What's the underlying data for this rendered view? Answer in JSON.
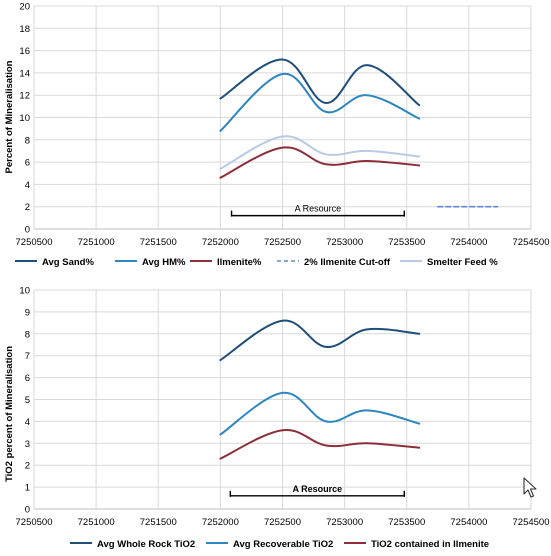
{
  "chart_data": [
    {
      "type": "line",
      "title": "",
      "xlabel": "",
      "ylabel": "Percent of Mineralisation",
      "xlim": [
        7250500,
        7254500
      ],
      "ylim": [
        0,
        20
      ],
      "x_ticks": [
        7250500,
        7251000,
        7251500,
        7252000,
        7252500,
        7253000,
        7253500,
        7254000,
        7254500
      ],
      "x_tick_labels": [
        "7250500",
        "7251000",
        "7251500",
        "7252000",
        "7252500",
        "7253000",
        "7253500",
        "7254000",
        "7254500"
      ],
      "y_ticks": [
        0,
        2,
        4,
        6,
        8,
        10,
        12,
        14,
        16,
        18,
        20
      ],
      "y_tick_labels": [
        "0",
        "2",
        "4",
        "6",
        "8",
        "10",
        "12",
        "14",
        "16",
        "18",
        "20"
      ],
      "grid": true,
      "legend_position": "bottom",
      "series": [
        {
          "name": "Avg Sand%",
          "color": "#1f4e79",
          "dash": false,
          "x": [
            7252000,
            7252500,
            7252850,
            7253180,
            7253600
          ],
          "values": [
            11.7,
            15.2,
            11.3,
            14.7,
            11.1
          ]
        },
        {
          "name": "Avg HM%",
          "color": "#2e86c1",
          "dash": false,
          "x": [
            7252000,
            7252500,
            7252850,
            7253180,
            7253600
          ],
          "values": [
            8.8,
            13.9,
            10.5,
            12.0,
            9.9
          ]
        },
        {
          "name": "Ilmenite%",
          "color": "#8b2e3a",
          "dash": false,
          "x": [
            7252000,
            7252500,
            7252850,
            7253180,
            7253600
          ],
          "values": [
            4.6,
            7.3,
            5.8,
            6.1,
            5.7
          ]
        },
        {
          "name": "2% Ilmenite Cut-off",
          "color": "#5b8ad8",
          "dash": true,
          "x": [
            7253750,
            7254230
          ],
          "values": [
            2.0,
            2.0
          ]
        },
        {
          "name": "Smelter Feed %",
          "color": "#b9cbe4",
          "dash": false,
          "x": [
            7252000,
            7252500,
            7252850,
            7253180,
            7253600
          ],
          "values": [
            5.4,
            8.3,
            6.7,
            7.0,
            6.5
          ]
        }
      ],
      "annotations": [
        {
          "text": "A Resource",
          "x_start": 7252090,
          "x_end": 7253480,
          "y": 1.2
        }
      ]
    },
    {
      "type": "line",
      "title": "",
      "xlabel": "",
      "ylabel": "TiO2 percent of Mineralisation",
      "xlim": [
        7250500,
        7254500
      ],
      "ylim": [
        0,
        10
      ],
      "x_ticks": [
        7250500,
        7251000,
        7251500,
        7252000,
        7252500,
        7253000,
        7253500,
        7254000,
        7254500
      ],
      "x_tick_labels": [
        "7250500",
        "7251000",
        "7251500",
        "7252000",
        "7252500",
        "7253000",
        "7253500",
        "7254000",
        "7254500"
      ],
      "y_ticks": [
        0,
        1,
        2,
        3,
        4,
        5,
        6,
        7,
        8,
        9,
        10
      ],
      "y_tick_labels": [
        "0",
        "1",
        "2",
        "3",
        "4",
        "5",
        "6",
        "7",
        "8",
        "9",
        "10"
      ],
      "grid": true,
      "legend_position": "bottom",
      "series": [
        {
          "name": "Avg Whole Rock TiO2",
          "color": "#1f4e79",
          "dash": false,
          "x": [
            7252000,
            7252500,
            7252850,
            7253180,
            7253600
          ],
          "values": [
            6.8,
            8.6,
            7.4,
            8.2,
            8.0
          ]
        },
        {
          "name": "Avg Recoverable TiO2",
          "color": "#2e86c1",
          "dash": false,
          "x": [
            7252000,
            7252500,
            7252850,
            7253180,
            7253600
          ],
          "values": [
            3.4,
            5.3,
            4.0,
            4.5,
            3.9
          ]
        },
        {
          "name": "TiO2 contained in Ilmenite",
          "color": "#8b2e3a",
          "dash": false,
          "x": [
            7252000,
            7252500,
            7252850,
            7253180,
            7253600
          ],
          "values": [
            2.3,
            3.6,
            2.9,
            3.0,
            2.8
          ]
        }
      ],
      "annotations": [
        {
          "text": "A Resource",
          "x_start": 7252080,
          "x_end": 7253480,
          "y": 0.6
        }
      ]
    }
  ]
}
